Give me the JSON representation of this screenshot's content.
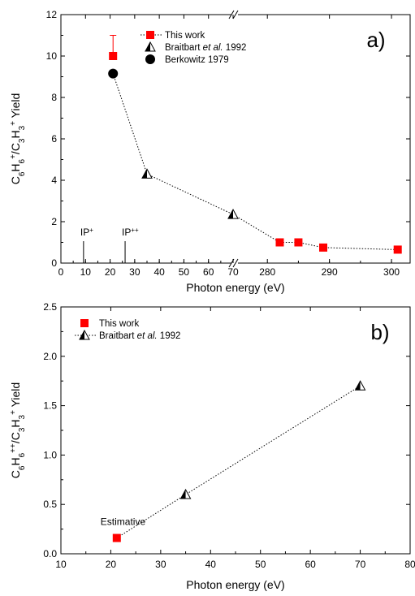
{
  "chart_data": [
    {
      "type": "scatter",
      "panel_label": "a)",
      "xlabel": "Photon energy (eV)",
      "ylabel": {
        "c": "C",
        "sub1": "6",
        "h": "H",
        "sub2": "6",
        "sup1": "+",
        "slash": "/C",
        "sub3": "3",
        "h2": "H",
        "sub4": "3",
        "sup2": "+",
        "tail": " Yield"
      },
      "broken_x_axis": true,
      "x_segments": [
        {
          "range": [
            0,
            70
          ],
          "ticks": [
            0,
            10,
            20,
            30,
            40,
            50,
            60,
            70
          ]
        },
        {
          "range": [
            275,
            303
          ],
          "ticks": [
            280,
            290,
            300
          ]
        }
      ],
      "ylim": [
        0,
        12
      ],
      "yticks": [
        0,
        2,
        4,
        6,
        8,
        10,
        12
      ],
      "legend": {
        "position": "top-right"
      },
      "series": [
        {
          "name": "This work",
          "marker": "square",
          "color": "#ff0000",
          "points": [
            [
              21.2,
              10.0
            ],
            [
              282,
              1.0
            ],
            [
              285,
              1.0
            ],
            [
              289,
              0.75
            ],
            [
              301,
              0.65
            ]
          ],
          "error_bars": [
            {
              "x": 21.2,
              "y": 10.0,
              "upper": 11.0
            }
          ]
        },
        {
          "name": "Braitbart et al. 1992",
          "name_parts": [
            "Braitbart ",
            "et al.",
            " 1992"
          ],
          "marker": "half-triangle",
          "color": "#000000",
          "points": [
            [
              35,
              4.3
            ],
            [
              70,
              2.35
            ]
          ]
        },
        {
          "name": "Berkowitz 1979",
          "marker": "circle",
          "color": "#000000",
          "points": [
            [
              21.2,
              9.15
            ]
          ]
        }
      ],
      "line_x": [
        21.2,
        35,
        70,
        282,
        285,
        289,
        301
      ],
      "line_y": [
        9.15,
        4.3,
        2.35,
        1.0,
        1.0,
        0.75,
        0.65
      ],
      "annotations": [
        {
          "x": 9.2,
          "label": "IP",
          "sup": "+"
        },
        {
          "x": 26.1,
          "label": "IP",
          "sup": "++"
        }
      ]
    },
    {
      "type": "scatter",
      "panel_label": "b)",
      "xlabel": "Photon energy (eV)",
      "ylabel": {
        "c": "C",
        "sub1": "6",
        "h": "H",
        "sub2": "6",
        "sup1": "++",
        "slash": "/C",
        "sub3": "3",
        "h2": "H",
        "sub4": "3",
        "sup2": "+",
        "tail": " Yield"
      },
      "xlim": [
        10,
        80
      ],
      "xticks": [
        10,
        20,
        30,
        40,
        50,
        60,
        70,
        80
      ],
      "ylim": [
        0,
        2.5
      ],
      "yticks": [
        "0.0",
        "0.5",
        "1.0",
        "1.5",
        "2.0",
        "2.5"
      ],
      "legend": {
        "position": "top-left"
      },
      "series": [
        {
          "name": "This work",
          "marker": "square",
          "color": "#ff0000",
          "points": [
            [
              21.2,
              0.16
            ]
          ]
        },
        {
          "name": "Braitbart et al. 1992",
          "name_parts": [
            "Braitbart ",
            "et al.",
            " 1992"
          ],
          "marker": "half-triangle",
          "color": "#000000",
          "points": [
            [
              35,
              0.6
            ],
            [
              70,
              1.7
            ]
          ]
        }
      ],
      "line_x": [
        21.2,
        35,
        70
      ],
      "line_y": [
        0.16,
        0.6,
        1.7
      ],
      "annotations": [
        {
          "x": 21.2,
          "y": 0.16,
          "label": "Estimative"
        }
      ]
    }
  ]
}
